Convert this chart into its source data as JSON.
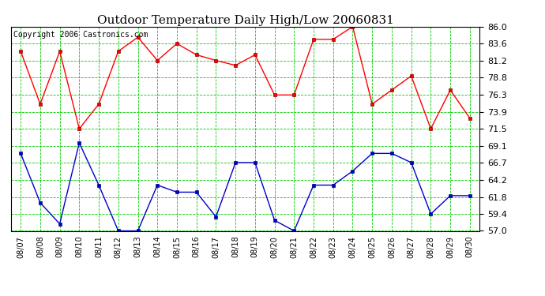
{
  "title": "Outdoor Temperature Daily High/Low 20060831",
  "copyright": "Copyright 2006 Castronics.com",
  "dates": [
    "08/07",
    "08/08",
    "08/09",
    "08/10",
    "08/11",
    "08/12",
    "08/13",
    "08/14",
    "08/15",
    "08/16",
    "08/17",
    "08/18",
    "08/19",
    "08/20",
    "08/21",
    "08/22",
    "08/23",
    "08/24",
    "08/25",
    "08/26",
    "08/27",
    "08/28",
    "08/29",
    "08/30"
  ],
  "high_temps": [
    82.5,
    75.0,
    82.5,
    71.5,
    75.0,
    82.5,
    84.5,
    81.2,
    83.6,
    82.0,
    81.2,
    80.5,
    82.0,
    76.3,
    76.3,
    84.2,
    84.2,
    86.0,
    75.0,
    77.0,
    79.0,
    71.5,
    77.0,
    73.0
  ],
  "low_temps": [
    68.0,
    61.0,
    58.0,
    69.5,
    63.5,
    57.0,
    57.0,
    63.5,
    62.5,
    62.5,
    59.0,
    66.7,
    66.7,
    58.5,
    57.0,
    63.5,
    63.5,
    65.5,
    68.0,
    68.0,
    66.7,
    59.4,
    62.0,
    62.0
  ],
  "ylim_min": 57.0,
  "ylim_max": 86.0,
  "yticks": [
    57.0,
    59.4,
    61.8,
    64.2,
    66.7,
    69.1,
    71.5,
    73.9,
    76.3,
    78.8,
    81.2,
    83.6,
    86.0
  ],
  "high_color": "#ff0000",
  "low_color": "#0000cc",
  "bg_color": "#ffffff",
  "plot_bg_color": "#ffffff",
  "grid_color": "#00cc00",
  "title_fontsize": 11,
  "copyright_fontsize": 7,
  "tick_fontsize": 8,
  "xtick_fontsize": 7
}
